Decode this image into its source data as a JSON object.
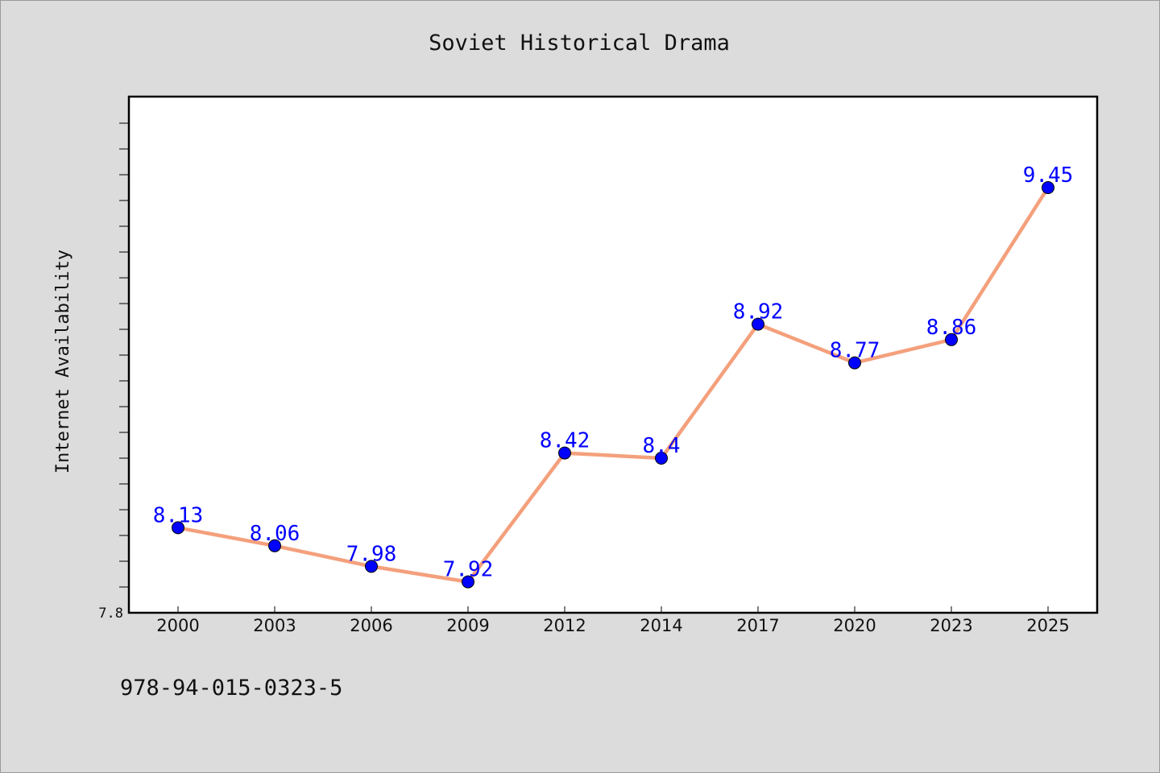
{
  "chart_data": {
    "type": "line",
    "title": "Soviet Historical Drama",
    "xlabel": "",
    "ylabel": "Internet Availability",
    "categories": [
      "2000",
      "2003",
      "2006",
      "2009",
      "2012",
      "2014",
      "2017",
      "2020",
      "2023",
      "2025"
    ],
    "series": [
      {
        "values": [
          8.13,
          8.06,
          7.98,
          7.92,
          8.42,
          8.4,
          8.92,
          8.77,
          8.86,
          9.45
        ],
        "line_color": "#f4a07c",
        "marker_color": "#0000ff"
      }
    ],
    "data_labels": [
      "8.13",
      "8.06",
      "7.98",
      "7.92",
      "8.42",
      "8.4",
      "8.92",
      "8.77",
      "8.86",
      "9.45"
    ],
    "ylim": [
      7.8,
      9.8
    ],
    "y_tick_labels": [
      "7.8"
    ],
    "grid": false,
    "legend": "none",
    "label_color": "#0000ff",
    "plot_background": "#ffffff",
    "figure_background": "#dcdcdc"
  },
  "footer": {
    "text": "978-94-015-0323-5"
  }
}
